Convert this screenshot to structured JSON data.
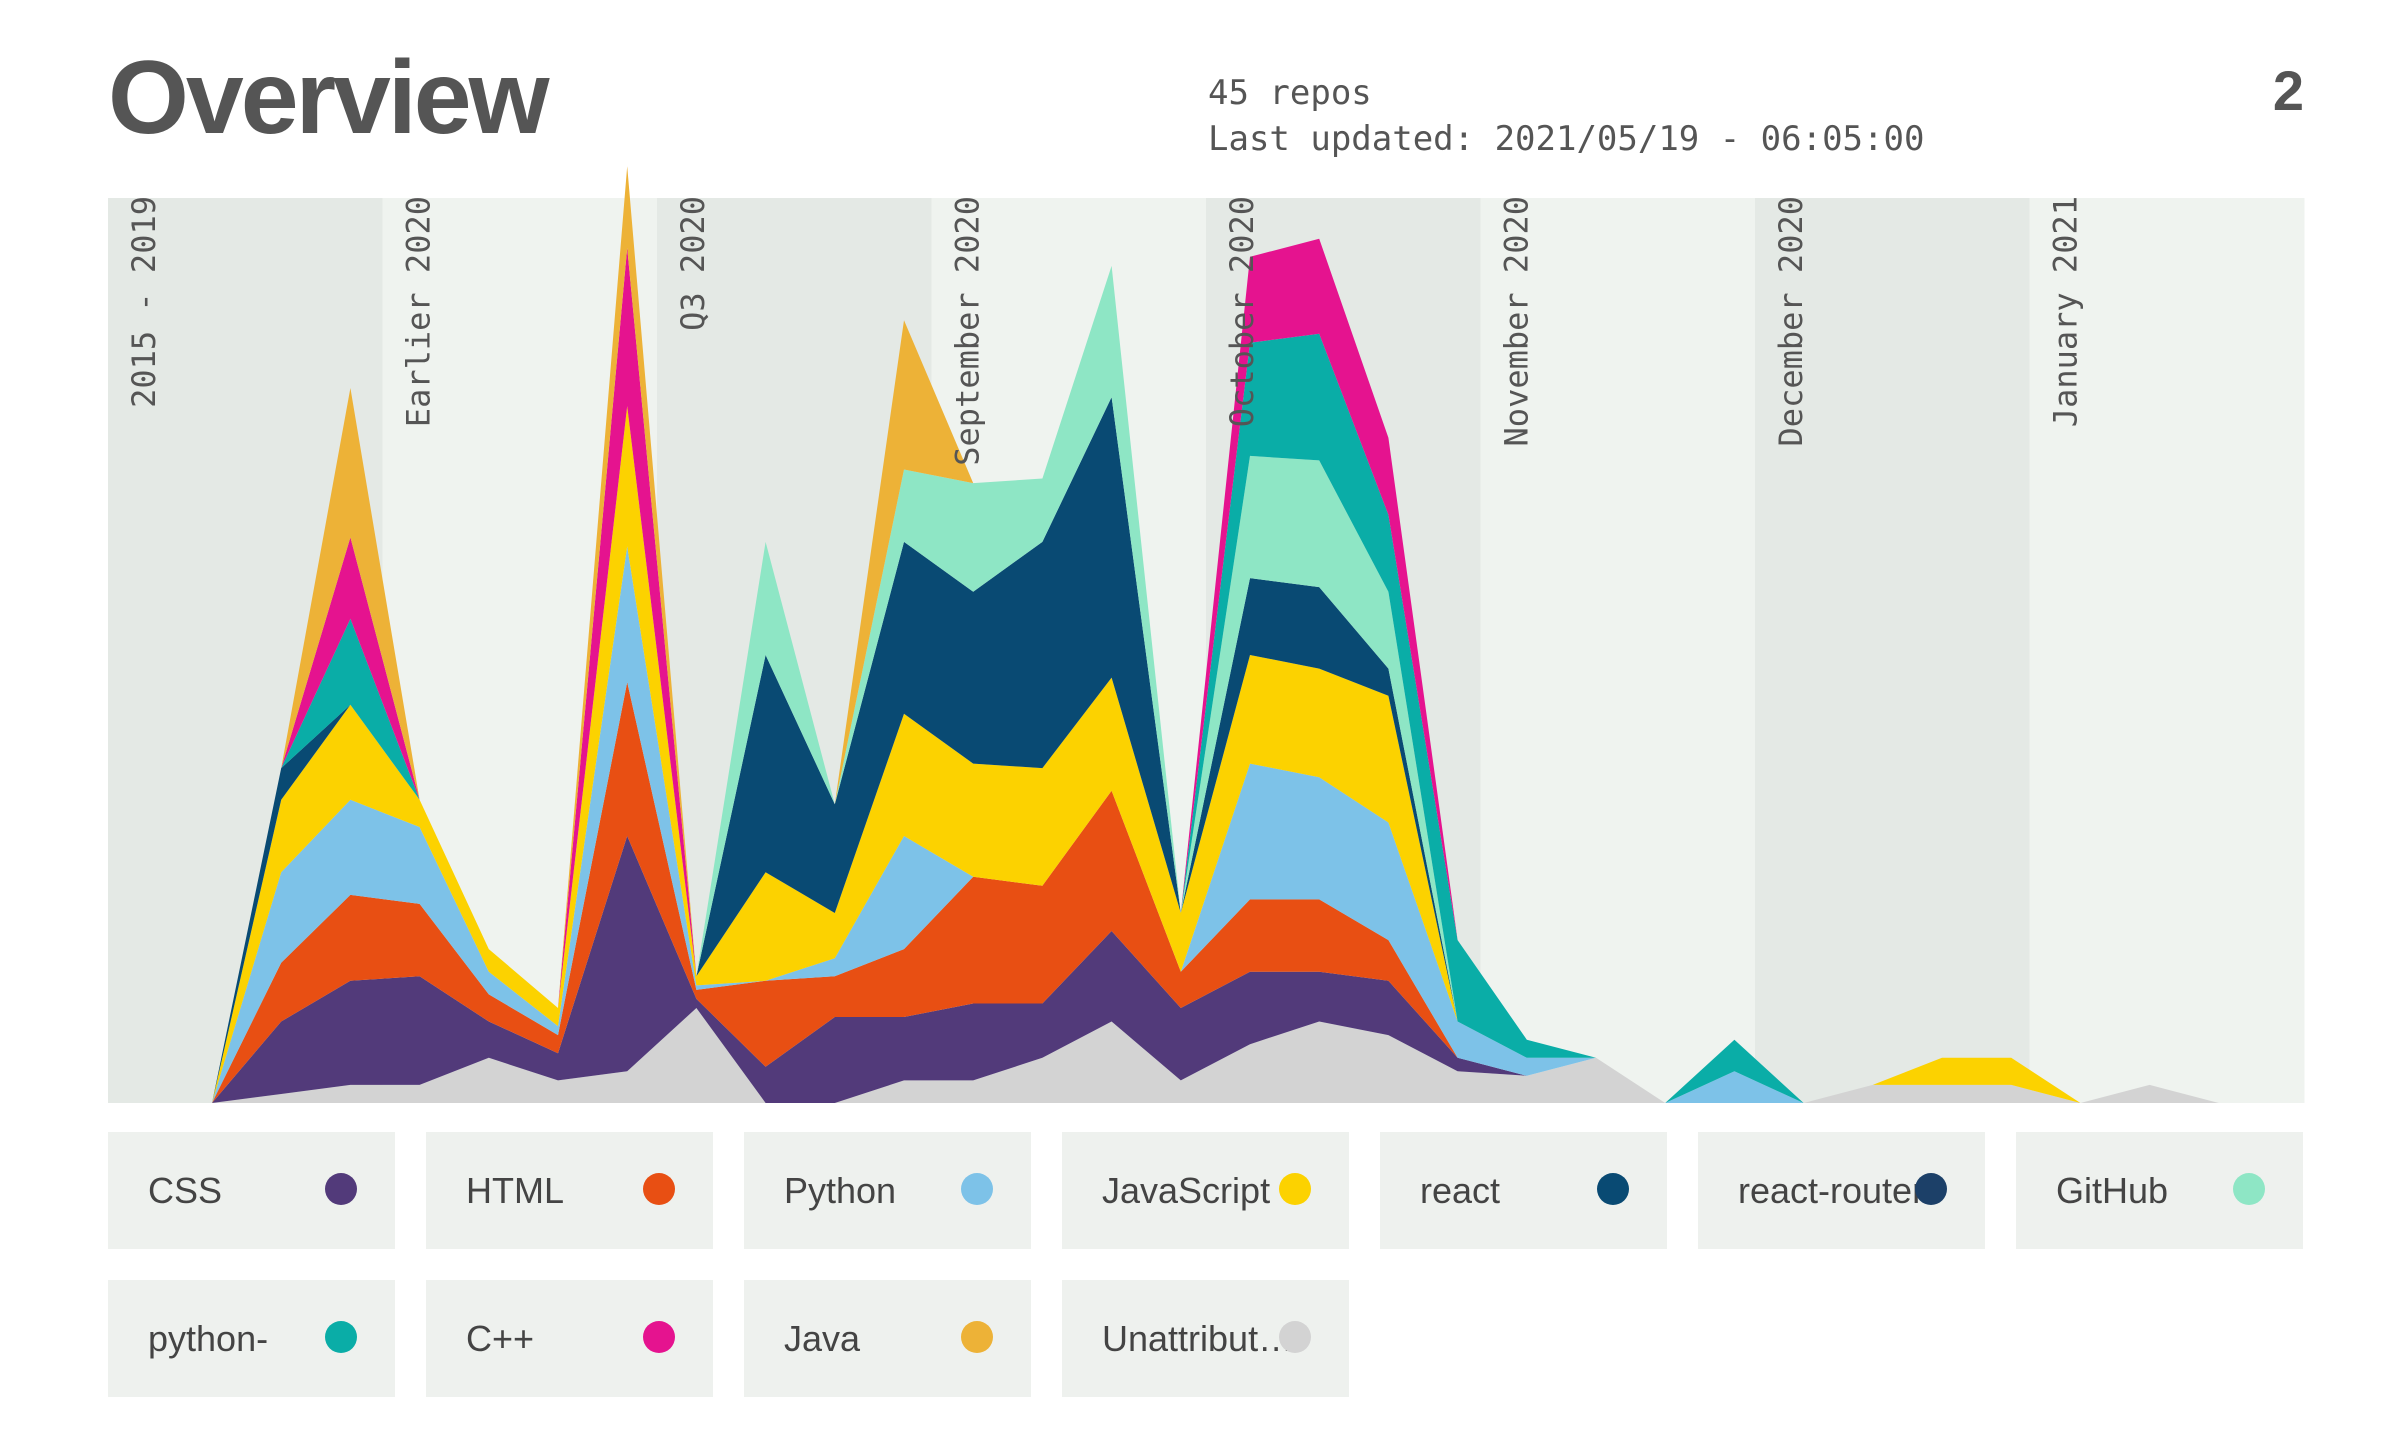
{
  "header": {
    "title": "Overview",
    "repos_text": "45 repos",
    "updated_text": "Last updated: 2021/05/19 - 06:05:00",
    "page_number": "2"
  },
  "chart_data": {
    "type": "area",
    "stacked": true,
    "title": "Overview",
    "xlabel": "",
    "ylabel": "",
    "ylim": [
      0,
      100
    ],
    "x": [
      0,
      1,
      2,
      3,
      4,
      5,
      6,
      7,
      8,
      9,
      10,
      11,
      12,
      13,
      14,
      15,
      16,
      17,
      18,
      19,
      20,
      21,
      22,
      23,
      24,
      25,
      26,
      27,
      28,
      29,
      30,
      31
    ],
    "periods": [
      "2015 - 2019",
      "Earlier 2020",
      "Q3 2020",
      "September 2020",
      "October 2020",
      "November 2020",
      "December 2020",
      "January 2021"
    ],
    "series": [
      {
        "name": "Unattributed",
        "color": "#d3d3d3",
        "values": [
          0,
          1,
          2,
          2,
          5,
          2.5,
          3.5,
          10.5,
          0,
          0,
          2.5,
          2.5,
          5,
          9,
          2.5,
          6.5,
          9,
          7.5,
          3.5,
          3,
          5,
          0,
          0,
          0,
          2,
          2,
          2,
          0,
          2,
          0,
          0,
          0
        ]
      },
      {
        "name": "CSS",
        "color": "#523a7a",
        "values": [
          0,
          8,
          11.5,
          12,
          4,
          3,
          26,
          1,
          4,
          9.5,
          7,
          8.5,
          6,
          10,
          8,
          8,
          5.5,
          6,
          1.5,
          0,
          0,
          0,
          0,
          0,
          0,
          0,
          0,
          0,
          0,
          0,
          0,
          0
        ]
      },
      {
        "name": "HTML",
        "color": "#e84f13",
        "values": [
          0,
          6.5,
          9.5,
          8,
          3,
          2,
          17,
          1,
          9.5,
          4.5,
          7.5,
          14,
          13,
          15.5,
          4,
          8,
          8,
          4.5,
          0,
          0,
          0,
          0,
          0,
          0,
          0,
          0,
          0,
          0,
          0,
          0,
          0,
          0
        ]
      },
      {
        "name": "Python",
        "color": "#7dc2e8",
        "values": [
          0,
          10,
          10.5,
          8.5,
          2.5,
          1,
          15,
          0.5,
          0,
          2,
          12.5,
          0,
          0,
          0,
          0,
          15,
          13.5,
          13,
          4,
          2,
          0,
          0,
          3.5,
          0,
          0,
          0,
          0,
          0,
          0,
          0,
          0,
          0
        ]
      },
      {
        "name": "JavaScript",
        "color": "#fcd200",
        "values": [
          0,
          8,
          10.5,
          3,
          2.5,
          2,
          15.5,
          1,
          12,
          5,
          13.5,
          12.5,
          13,
          12.5,
          6.5,
          12,
          12,
          14,
          0,
          0,
          0,
          0,
          0,
          0,
          0,
          3,
          3,
          0,
          0,
          0,
          0,
          0
        ]
      },
      {
        "name": "react",
        "color": "#094a73",
        "values": [
          0,
          3.5,
          0,
          0,
          0,
          0,
          0,
          0,
          24,
          12,
          19,
          19,
          25,
          31,
          0,
          8.5,
          9,
          3,
          0,
          0,
          0,
          0,
          0,
          0,
          0,
          0,
          0,
          0,
          0,
          0,
          0,
          0
        ]
      },
      {
        "name": "react-router",
        "color": "#1c4068",
        "values": [
          0,
          0,
          0,
          0,
          0,
          0,
          0,
          0,
          0,
          0,
          0,
          0,
          0,
          0,
          0,
          0,
          0,
          0,
          0,
          0,
          0,
          0,
          0,
          0,
          0,
          0,
          0,
          0,
          0,
          0,
          0,
          0
        ]
      },
      {
        "name": "GitHub",
        "color": "#8ee6c5",
        "values": [
          0,
          0,
          0,
          0,
          0,
          0,
          0,
          0,
          12.5,
          0,
          8,
          12,
          7,
          14.5,
          0,
          13.5,
          14,
          8.5,
          0,
          0,
          0,
          0,
          0,
          0,
          0,
          0,
          0,
          0,
          0,
          0,
          0,
          0
        ]
      },
      {
        "name": "python-",
        "color": "#0aada7",
        "values": [
          0,
          0,
          9.5,
          0,
          0,
          0,
          0,
          0,
          0,
          0,
          0,
          0,
          0,
          0,
          0,
          12.5,
          14,
          8.5,
          9,
          2,
          0,
          0,
          3.5,
          0,
          0,
          0,
          0,
          0,
          0,
          0,
          0,
          0
        ]
      },
      {
        "name": "C++",
        "color": "#e5138f",
        "values": [
          0,
          0,
          9,
          0,
          0,
          0,
          17.5,
          0,
          0,
          0,
          0,
          0,
          0,
          0,
          0,
          9.5,
          10.5,
          8.5,
          0,
          0,
          0,
          0,
          0,
          0,
          0,
          0,
          0,
          0,
          0,
          0,
          0,
          0
        ]
      },
      {
        "name": "Java",
        "color": "#edb237",
        "values": [
          0,
          0,
          16.5,
          0,
          0,
          0,
          9,
          0,
          0,
          0,
          16.5,
          0,
          0,
          0,
          0,
          0,
          0,
          0,
          0,
          0,
          0,
          0,
          0,
          0,
          0,
          0,
          0,
          0,
          0,
          0,
          0,
          0
        ]
      }
    ]
  }
}
